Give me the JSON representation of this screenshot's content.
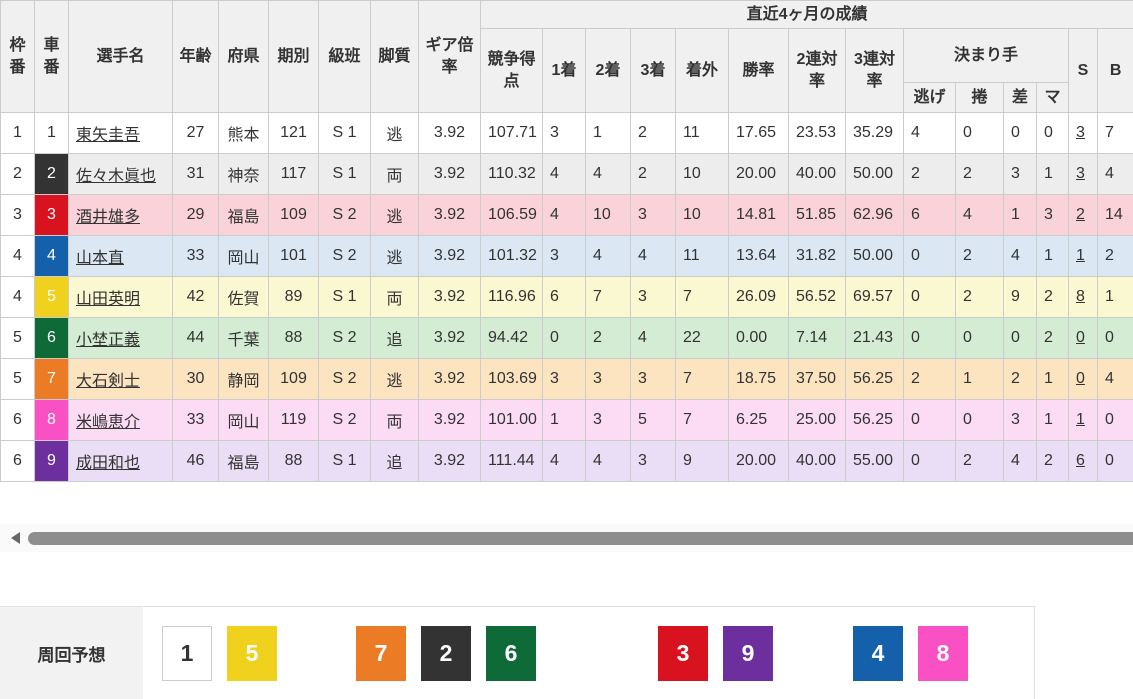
{
  "table": {
    "group_header": "直近4ヶ月の成績",
    "headers": {
      "waku": "枠番",
      "car": "車番",
      "name": "選手名",
      "age": "年齢",
      "pref": "府県",
      "term": "期別",
      "grade": "級班",
      "leg": "脚質",
      "gear": "ギア倍率",
      "points": "競争得点",
      "first": "1着",
      "second": "2着",
      "third": "3着",
      "out": "着外",
      "win_rate": "勝率",
      "quinella2": "2連対率",
      "quinella3": "3連対率",
      "kimarite": "決まり手",
      "nige": "逃げ",
      "makuri": "捲",
      "sashi": "差",
      "mark": "マ",
      "s": "S",
      "b": "B"
    },
    "rows": [
      {
        "waku": "1",
        "car": "1",
        "name": "東矢圭吾",
        "age": "27",
        "pref": "熊本",
        "term": "121",
        "grade": "S 1",
        "leg": "逃",
        "gear": "3.92",
        "points": "107.71",
        "first": "3",
        "second": "1",
        "third": "2",
        "out": "11",
        "win_rate": "17.65",
        "quinella2": "23.53",
        "quinella3": "35.29",
        "nige": "4",
        "makuri": "0",
        "sashi": "0",
        "mark": "0",
        "s": "3",
        "b": "7"
      },
      {
        "waku": "2",
        "car": "2",
        "name": "佐々木眞也",
        "age": "31",
        "pref": "神奈",
        "term": "117",
        "grade": "S 1",
        "leg": "両",
        "gear": "3.92",
        "points": "110.32",
        "first": "4",
        "second": "4",
        "third": "2",
        "out": "10",
        "win_rate": "20.00",
        "quinella2": "40.00",
        "quinella3": "50.00",
        "nige": "2",
        "makuri": "2",
        "sashi": "3",
        "mark": "1",
        "s": "3",
        "b": "4"
      },
      {
        "waku": "3",
        "car": "3",
        "name": "酒井雄多",
        "age": "29",
        "pref": "福島",
        "term": "109",
        "grade": "S 2",
        "leg": "逃",
        "gear": "3.92",
        "points": "106.59",
        "first": "4",
        "second": "10",
        "third": "3",
        "out": "10",
        "win_rate": "14.81",
        "quinella2": "51.85",
        "quinella3": "62.96",
        "nige": "6",
        "makuri": "4",
        "sashi": "1",
        "mark": "3",
        "s": "2",
        "b": "14"
      },
      {
        "waku": "4",
        "car": "4",
        "name": "山本直",
        "age": "33",
        "pref": "岡山",
        "term": "101",
        "grade": "S 2",
        "leg": "逃",
        "gear": "3.92",
        "points": "101.32",
        "first": "3",
        "second": "4",
        "third": "4",
        "out": "11",
        "win_rate": "13.64",
        "quinella2": "31.82",
        "quinella3": "50.00",
        "nige": "0",
        "makuri": "2",
        "sashi": "4",
        "mark": "1",
        "s": "1",
        "b": "2"
      },
      {
        "waku": "4",
        "car": "5",
        "name": "山田英明",
        "age": "42",
        "pref": "佐賀",
        "term": "89",
        "grade": "S 1",
        "leg": "両",
        "gear": "3.92",
        "points": "116.96",
        "first": "6",
        "second": "7",
        "third": "3",
        "out": "7",
        "win_rate": "26.09",
        "quinella2": "56.52",
        "quinella3": "69.57",
        "nige": "0",
        "makuri": "2",
        "sashi": "9",
        "mark": "2",
        "s": "8",
        "b": "1"
      },
      {
        "waku": "5",
        "car": "6",
        "name": "小埜正義",
        "age": "44",
        "pref": "千葉",
        "term": "88",
        "grade": "S 2",
        "leg": "追",
        "gear": "3.92",
        "points": "94.42",
        "first": "0",
        "second": "2",
        "third": "4",
        "out": "22",
        "win_rate": "0.00",
        "quinella2": "7.14",
        "quinella3": "21.43",
        "nige": "0",
        "makuri": "0",
        "sashi": "0",
        "mark": "2",
        "s": "0",
        "b": "0"
      },
      {
        "waku": "5",
        "car": "7",
        "name": "大石剣士",
        "age": "30",
        "pref": "静岡",
        "term": "109",
        "grade": "S 2",
        "leg": "逃",
        "gear": "3.92",
        "points": "103.69",
        "first": "3",
        "second": "3",
        "third": "3",
        "out": "7",
        "win_rate": "18.75",
        "quinella2": "37.50",
        "quinella3": "56.25",
        "nige": "2",
        "makuri": "1",
        "sashi": "2",
        "mark": "1",
        "s": "0",
        "b": "4"
      },
      {
        "waku": "6",
        "car": "8",
        "name": "米嶋恵介",
        "age": "33",
        "pref": "岡山",
        "term": "119",
        "grade": "S 2",
        "leg": "両",
        "gear": "3.92",
        "points": "101.00",
        "first": "1",
        "second": "3",
        "third": "5",
        "out": "7",
        "win_rate": "6.25",
        "quinella2": "25.00",
        "quinella3": "56.25",
        "nige": "0",
        "makuri": "0",
        "sashi": "3",
        "mark": "1",
        "s": "1",
        "b": "0"
      },
      {
        "waku": "6",
        "car": "9",
        "name": "成田和也",
        "age": "46",
        "pref": "福島",
        "term": "88",
        "grade": "S 1",
        "leg": "追",
        "gear": "3.92",
        "points": "111.44",
        "first": "4",
        "second": "4",
        "third": "3",
        "out": "9",
        "win_rate": "20.00",
        "quinella2": "40.00",
        "quinella3": "55.00",
        "nige": "0",
        "makuri": "2",
        "sashi": "4",
        "mark": "2",
        "s": "6",
        "b": "0"
      }
    ]
  },
  "colors": {
    "car": {
      "1": {
        "bg": "#ffffff",
        "fg": "#333333",
        "border": "#cccccc"
      },
      "2": {
        "bg": "#333333",
        "fg": "#ffffff"
      },
      "3": {
        "bg": "#d9121f",
        "fg": "#ffffff"
      },
      "4": {
        "bg": "#1560ab",
        "fg": "#ffffff"
      },
      "5": {
        "bg": "#f0d11e",
        "fg": "#ffffff"
      },
      "6": {
        "bg": "#0e6b38",
        "fg": "#ffffff"
      },
      "7": {
        "bg": "#eb7b25",
        "fg": "#ffffff"
      },
      "8": {
        "bg": "#f950c4",
        "fg": "#ffffff"
      },
      "9": {
        "bg": "#6d2e9e",
        "fg": "#ffffff"
      }
    },
    "row": {
      "1": "#ffffff",
      "2": "#ededed",
      "3": "#fad3da",
      "4": "#dbe8f4",
      "5": "#faf8d0",
      "6": "#d3ecd3",
      "7": "#fce4c1",
      "8": "#fbdcf4",
      "9": "#e9def6"
    }
  },
  "lap_forecast": {
    "label": "周回予想",
    "groups": [
      {
        "cars": [
          "1",
          "5"
        ]
      },
      {
        "cars": [
          "7",
          "2",
          "6"
        ]
      },
      {
        "cars": [
          "3",
          "9"
        ]
      },
      {
        "cars": [
          "4",
          "8"
        ]
      }
    ]
  }
}
